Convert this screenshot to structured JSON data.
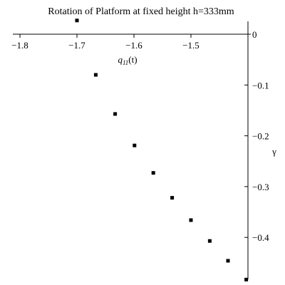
{
  "chart_data": {
    "type": "scatter",
    "title": "Rotation of Platform at fixed height h=333mm",
    "xlabel_main": "q",
    "xlabel_sub": "11",
    "xlabel_tail": "(t)",
    "ylabel": "γ",
    "xlim": [
      -1.8,
      -1.4
    ],
    "ylim": [
      -0.48,
      0.02
    ],
    "x_ticks": [
      -1.8,
      -1.7,
      -1.6,
      -1.5
    ],
    "x_tick_labels": [
      "−1.8",
      "−1.7",
      "−1.6",
      "−1.5"
    ],
    "y_ticks": [
      0,
      -0.1,
      -0.2,
      -0.3,
      -0.4
    ],
    "y_tick_labels": [
      "0",
      "−0.1",
      "−0.2",
      "−0.3",
      "−0.4"
    ],
    "grid": false,
    "points": [
      {
        "x": -1.7,
        "y": 0.027
      },
      {
        "x": -1.667,
        "y": -0.08
      },
      {
        "x": -1.633,
        "y": -0.157
      },
      {
        "x": -1.599,
        "y": -0.219
      },
      {
        "x": -1.566,
        "y": -0.273
      },
      {
        "x": -1.533,
        "y": -0.322
      },
      {
        "x": -1.5,
        "y": -0.366
      },
      {
        "x": -1.467,
        "y": -0.407
      },
      {
        "x": -1.435,
        "y": -0.446
      },
      {
        "x": -1.403,
        "y": -0.483
      }
    ],
    "marker": "square",
    "color": "#000000"
  }
}
